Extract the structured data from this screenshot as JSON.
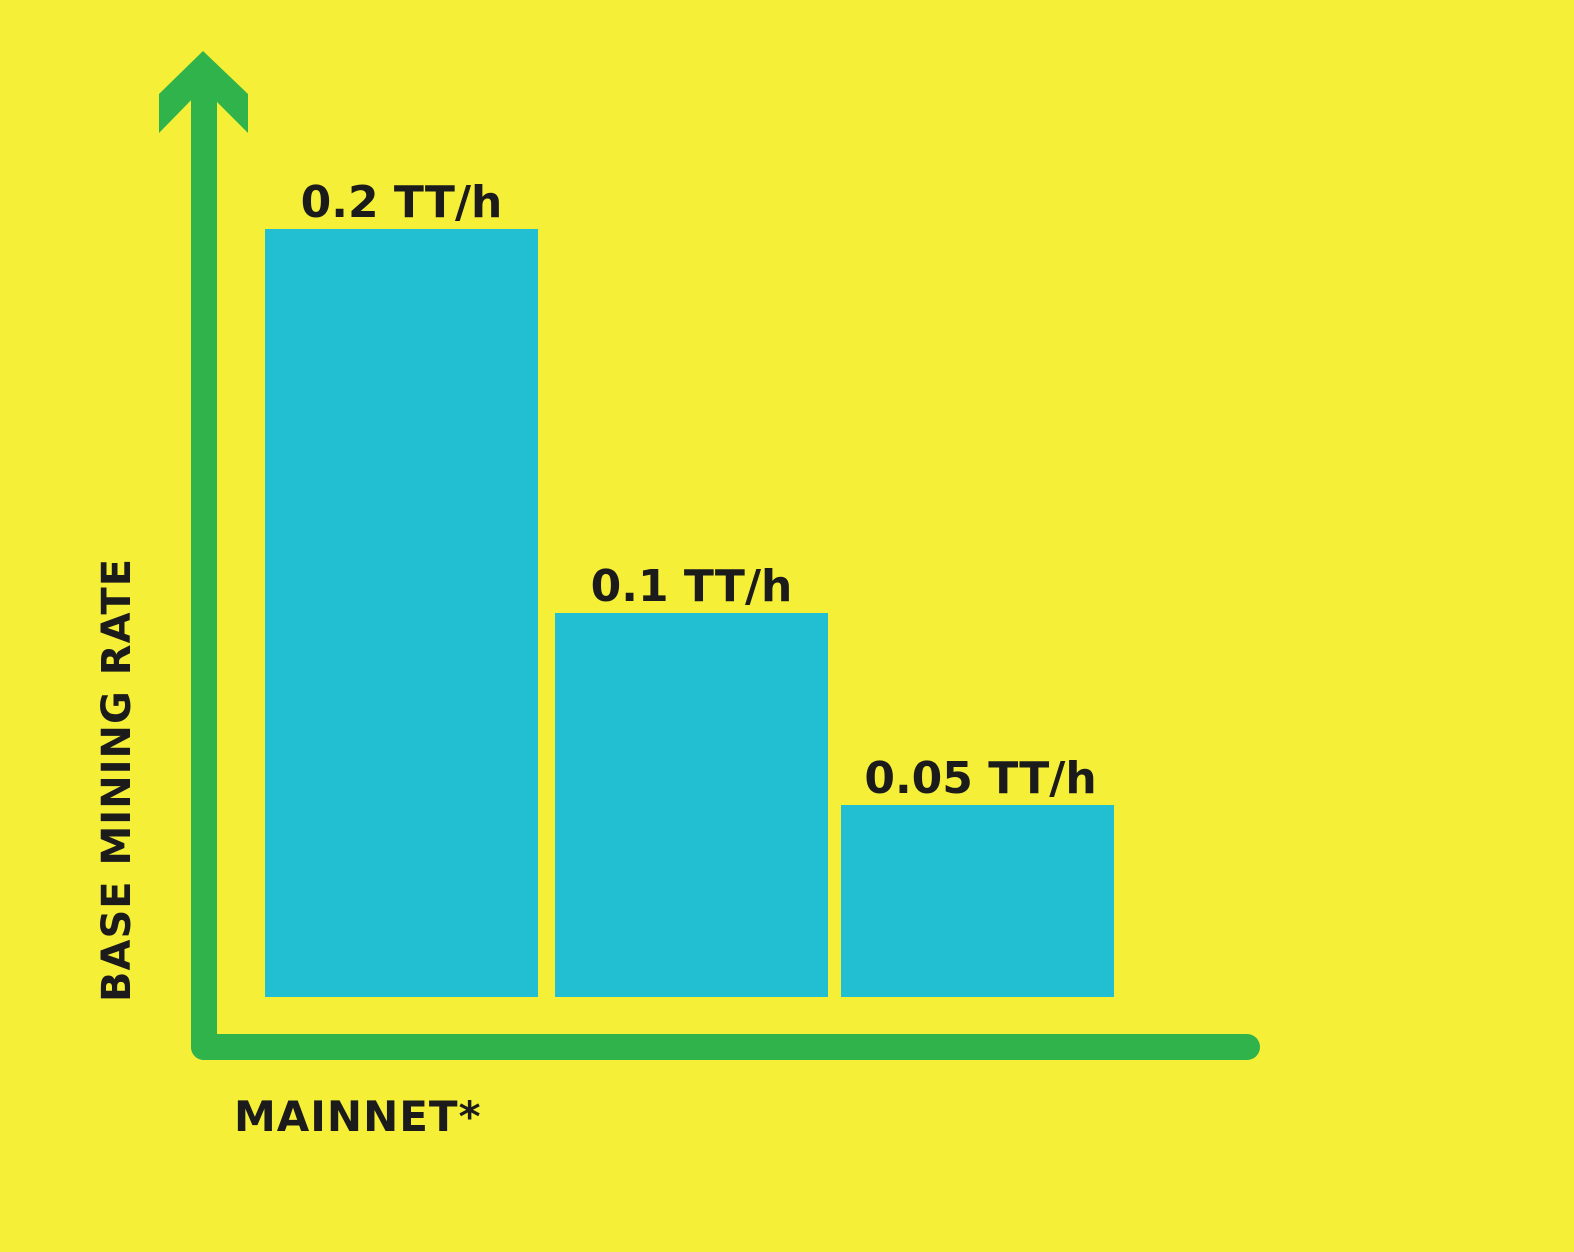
{
  "colors": {
    "background": "#f5ef38",
    "axis": "#2fb34a",
    "bar": "#22bfd3",
    "text": "#1b1b1b"
  },
  "chart_data": {
    "type": "bar",
    "title": "",
    "xlabel": "MAINNET*",
    "ylabel": "BASE MINING RATE",
    "categories": [
      "",
      "",
      ""
    ],
    "values": [
      0.2,
      0.1,
      0.05
    ],
    "data_labels": [
      "0.2 TT/h",
      "0.1 TT/h",
      "0.05 TT/h"
    ],
    "unit": "TT/h",
    "ylim": [
      0,
      0.2
    ],
    "grid": false,
    "legend": "none",
    "axis_arrow": "y-top"
  }
}
